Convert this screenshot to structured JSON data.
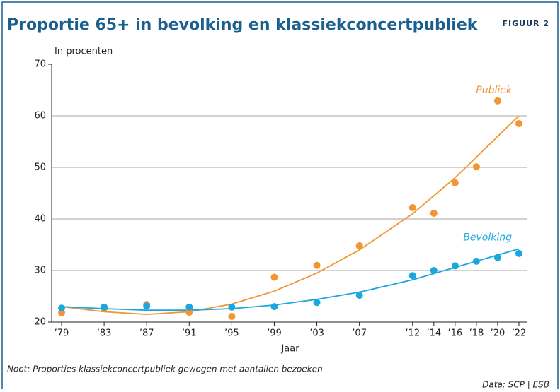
{
  "chart_data": {
    "type": "scatter",
    "title": "Proportie 65+ in bevolking en klassiekconcertpubliek",
    "figure_label": "FIGUUR 2",
    "y_label": "In procenten",
    "x_label": "Jaar",
    "note": "Noot: Proporties klassiekconcertpubliek gewogen met aantallen bezoeken",
    "source": "Data: SCP | ESB",
    "x": [
      1979,
      1983,
      1987,
      1991,
      1995,
      1999,
      2003,
      2007,
      2012,
      2014,
      2016,
      2018,
      2020,
      2022
    ],
    "series": [
      {
        "name": "Publiek",
        "color": "#f39531",
        "values": [
          21.8,
          22.6,
          23.4,
          21.9,
          21.1,
          28.7,
          31.0,
          34.8,
          42.2,
          41.1,
          47.0,
          50.1,
          62.9,
          58.5
        ],
        "trend": [
          23.0,
          22.0,
          21.5,
          22.0,
          23.5,
          26.0,
          29.5,
          34.0,
          41.0,
          44.5,
          48.0,
          52.0,
          56.0,
          60.0
        ]
      },
      {
        "name": "Bevolking",
        "color": "#1ba6e0",
        "values": [
          22.7,
          22.9,
          23.1,
          22.9,
          22.9,
          23.0,
          23.8,
          25.2,
          29.0,
          30.0,
          30.9,
          31.8,
          32.5,
          33.3
        ],
        "trend": [
          23.0,
          22.6,
          22.3,
          22.3,
          22.6,
          23.3,
          24.4,
          25.8,
          28.2,
          29.4,
          30.6,
          31.8,
          33.0,
          34.2
        ]
      }
    ],
    "xlim": [
      1979,
      2022
    ],
    "xticks": [
      {
        "value": 1979,
        "label": "’79"
      },
      {
        "value": 1983,
        "label": "’83"
      },
      {
        "value": 1987,
        "label": "’87"
      },
      {
        "value": 1991,
        "label": "’91"
      },
      {
        "value": 1995,
        "label": "’95"
      },
      {
        "value": 1999,
        "label": "’99"
      },
      {
        "value": 2003,
        "label": "’03"
      },
      {
        "value": 2007,
        "label": "’07"
      },
      {
        "value": 2012,
        "label": "’12"
      },
      {
        "value": 2014,
        "label": "’14"
      },
      {
        "value": 2016,
        "label": "’16"
      },
      {
        "value": 2018,
        "label": "’18"
      },
      {
        "value": 2020,
        "label": "’20"
      },
      {
        "value": 2022,
        "label": "’22"
      }
    ],
    "ylim": [
      20,
      70
    ],
    "yticks": [
      20,
      30,
      40,
      50,
      60,
      70
    ],
    "grid": true
  }
}
